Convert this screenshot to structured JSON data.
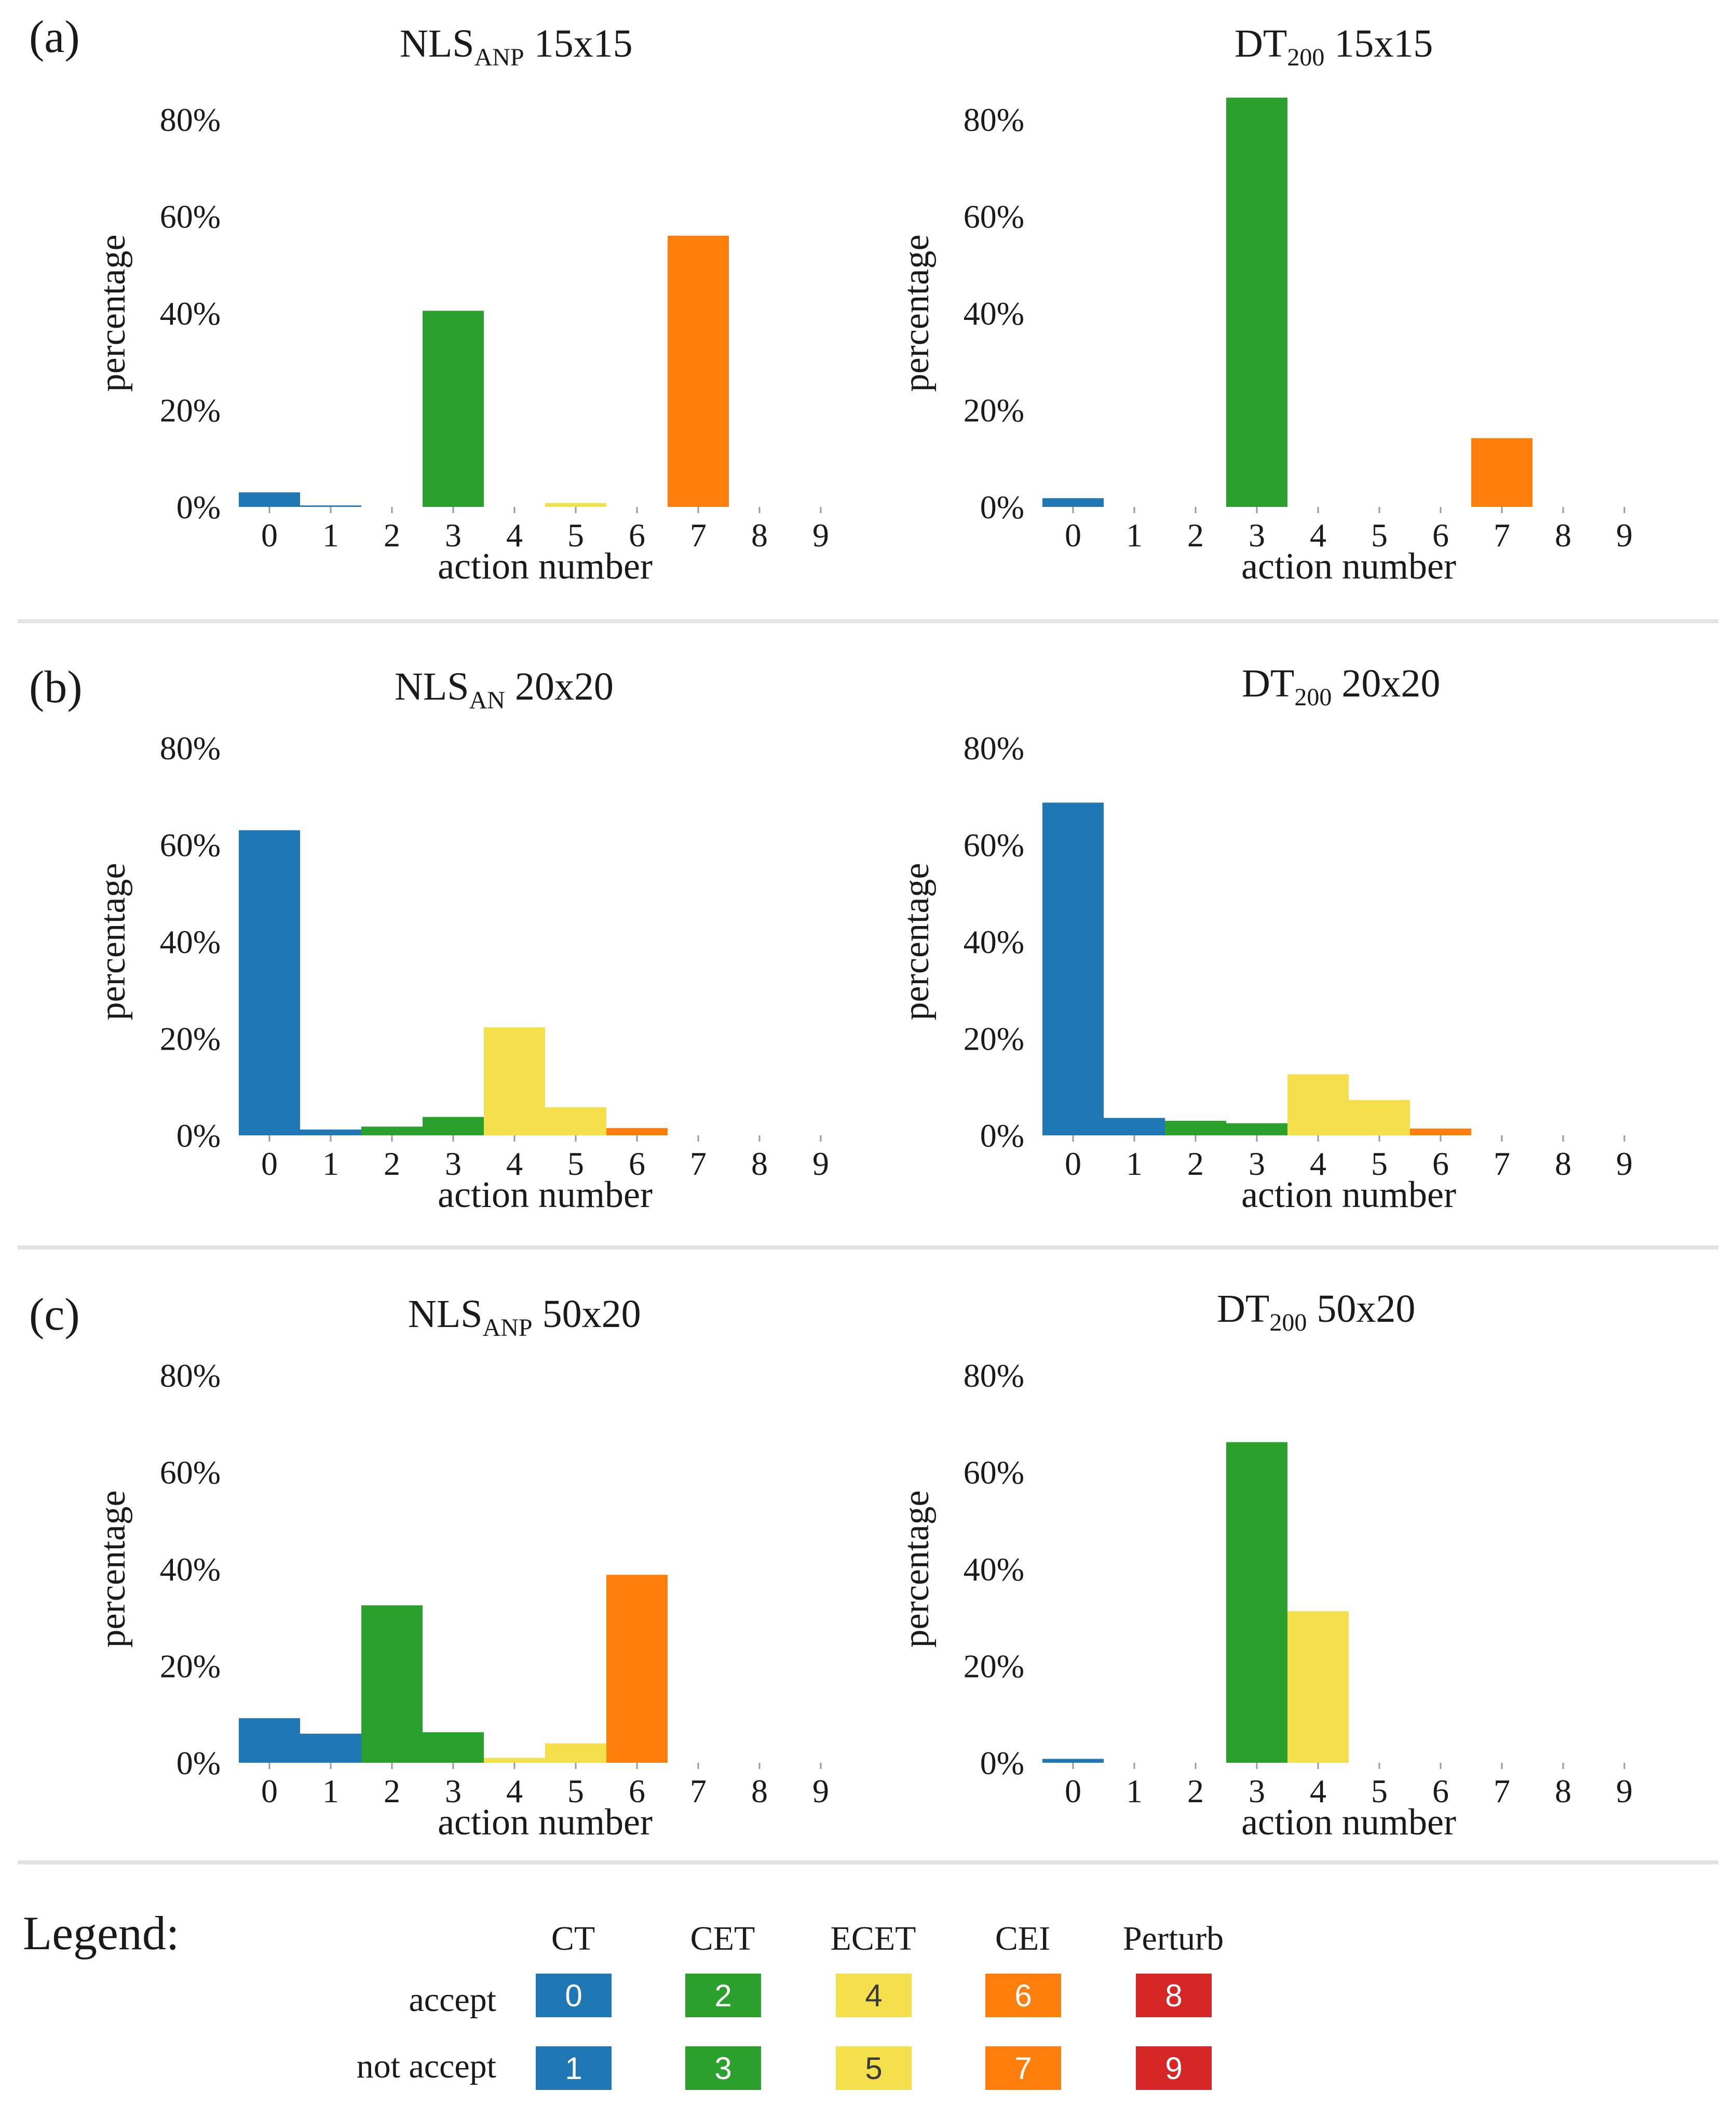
{
  "colors": {
    "CT_accept": "#1f77b4",
    "CT_not_accept": "#1f77b4",
    "CET_accept": "#2ca02c",
    "CET_not_accept": "#2ca02c",
    "ECET_accept": "#f4e04d",
    "ECET_not_accept": "#f4e04d",
    "CEI_accept": "#ff7f0e",
    "CEI_not_accept": "#ff7f0e",
    "Perturb_accept": "#d62728",
    "Perturb_not_accept": "#d62728",
    "separator": "#e4e4e4"
  },
  "panels": [
    {
      "label": "(a)"
    },
    {
      "label": "(b)"
    },
    {
      "label": "(c)"
    }
  ],
  "chart_data": [
    {
      "type": "bar",
      "panel": "(a)",
      "title_main": "NLS",
      "title_sub": "ANP",
      "title_rest": " 15x15",
      "categories": [
        "0",
        "1",
        "2",
        "3",
        "4",
        "5",
        "6",
        "7",
        "8",
        "9"
      ],
      "values": [
        3.0,
        0.3,
        0,
        40.5,
        0,
        0.8,
        0,
        56,
        0,
        0
      ],
      "xlabel": "action number",
      "ylabel": "percentage",
      "yticks": [
        "0%",
        "20%",
        "40%",
        "60%",
        "80%"
      ],
      "ylim": [
        0,
        80
      ]
    },
    {
      "type": "bar",
      "panel": "(a)",
      "title_main": "DT",
      "title_sub": "200",
      "title_rest": " 15x15",
      "categories": [
        "0",
        "1",
        "2",
        "3",
        "4",
        "5",
        "6",
        "7",
        "8",
        "9"
      ],
      "values": [
        1.8,
        0,
        0,
        84.5,
        0,
        0,
        0,
        14.2,
        0,
        0
      ],
      "xlabel": "action number",
      "ylabel": "percentage",
      "yticks": [
        "0%",
        "20%",
        "40%",
        "60%",
        "80%"
      ],
      "ylim": [
        0,
        80
      ]
    },
    {
      "type": "bar",
      "panel": "(b)",
      "title_main": "NLS",
      "title_sub": "AN",
      "title_rest": " 20x20",
      "categories": [
        "0",
        "1",
        "2",
        "3",
        "4",
        "5",
        "6",
        "7",
        "8",
        "9"
      ],
      "values": [
        63,
        1.2,
        1.8,
        3.8,
        22.3,
        5.8,
        1.5,
        0,
        0,
        0
      ],
      "xlabel": "action number",
      "ylabel": "percentage",
      "yticks": [
        "0%",
        "20%",
        "40%",
        "60%",
        "80%"
      ],
      "ylim": [
        0,
        80
      ]
    },
    {
      "type": "bar",
      "panel": "(b)",
      "title_main": "DT",
      "title_sub": "200",
      "title_rest": " 20x20",
      "categories": [
        "0",
        "1",
        "2",
        "3",
        "4",
        "5",
        "6",
        "7",
        "8",
        "9"
      ],
      "values": [
        68.7,
        3.6,
        3.0,
        2.5,
        12.6,
        7.3,
        1.4,
        0,
        0,
        0
      ],
      "xlabel": "action number",
      "ylabel": "percentage",
      "yticks": [
        "0%",
        "20%",
        "40%",
        "60%",
        "80%"
      ],
      "ylim": [
        0,
        80
      ]
    },
    {
      "type": "bar",
      "panel": "(c)",
      "title_main": "NLS",
      "title_sub": "ANP",
      "title_rest": " 50x20",
      "categories": [
        "0",
        "1",
        "2",
        "3",
        "4",
        "5",
        "6",
        "7",
        "8",
        "9"
      ],
      "values": [
        9.2,
        6.0,
        32.5,
        6.3,
        1.0,
        4.0,
        38.8,
        0,
        0,
        0
      ],
      "xlabel": "action number",
      "ylabel": "percentage",
      "yticks": [
        "0%",
        "20%",
        "40%",
        "60%",
        "80%"
      ],
      "ylim": [
        0,
        80
      ]
    },
    {
      "type": "bar",
      "panel": "(c)",
      "title_main": "DT",
      "title_sub": "200",
      "title_rest": " 50x20",
      "categories": [
        "0",
        "1",
        "2",
        "3",
        "4",
        "5",
        "6",
        "7",
        "8",
        "9"
      ],
      "values": [
        0.8,
        0,
        0,
        66.2,
        31.3,
        0,
        0,
        0,
        0,
        0
      ],
      "xlabel": "action number",
      "ylabel": "percentage",
      "yticks": [
        "0%",
        "20%",
        "40%",
        "60%",
        "80%"
      ],
      "ylim": [
        0,
        80
      ]
    }
  ],
  "legend": {
    "title": "Legend:",
    "columns": [
      "CT",
      "CET",
      "ECET",
      "CEI",
      "Perturb"
    ],
    "rows": [
      "accept",
      "not accept"
    ],
    "accept_numbers": [
      "0",
      "2",
      "4",
      "6",
      "8"
    ],
    "not_accept_numbers": [
      "1",
      "3",
      "5",
      "7",
      "9"
    ]
  }
}
